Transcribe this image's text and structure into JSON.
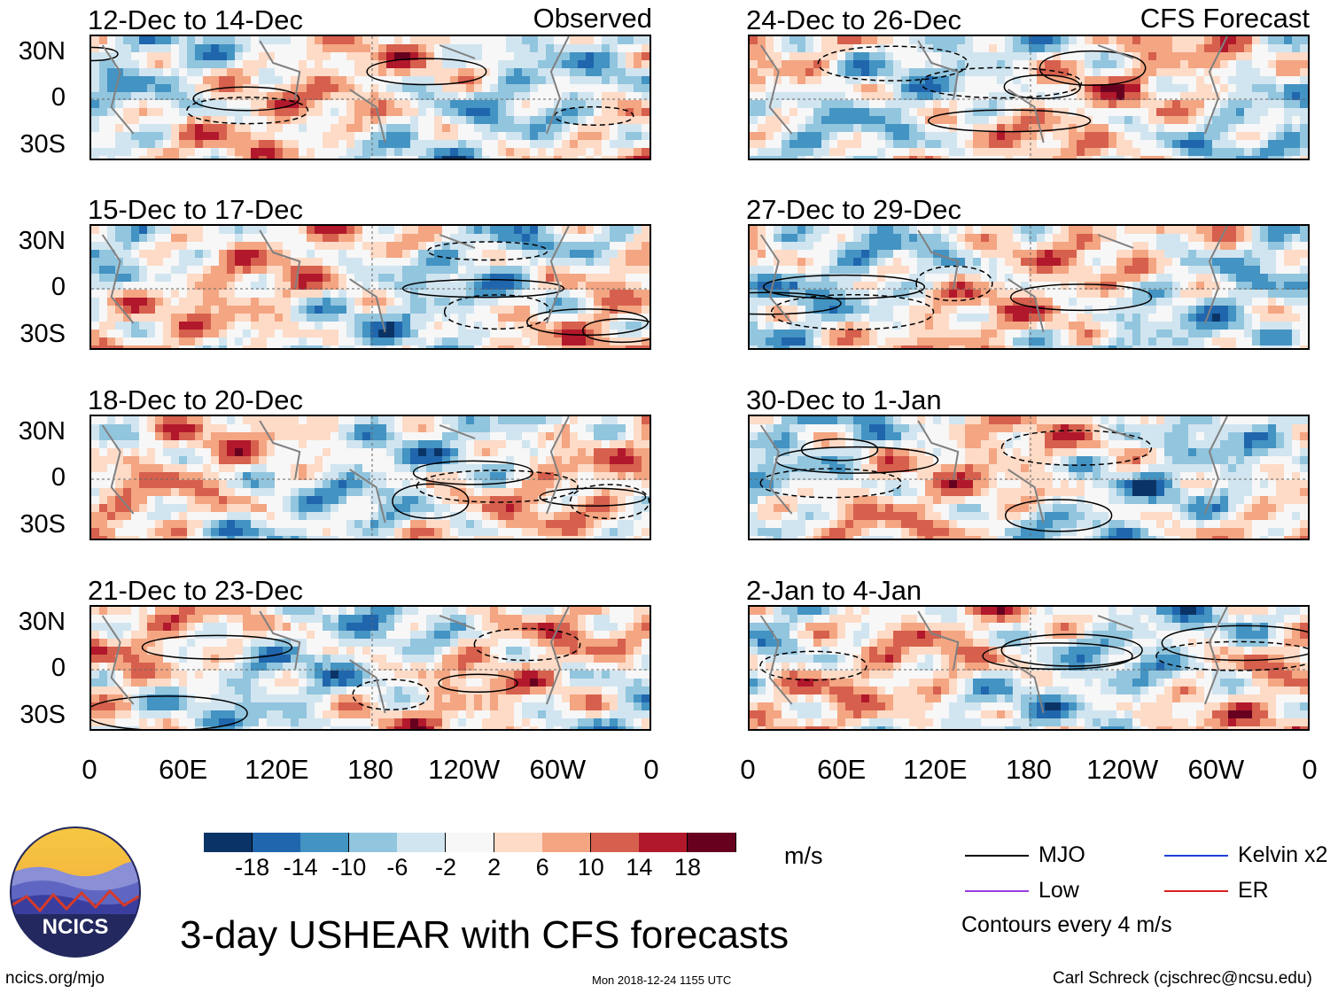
{
  "title": "3-day USHEAR with CFS forecasts",
  "site": "ncics.org/mjo",
  "timestamp": "Mon 2018-12-24 1155 UTC",
  "author": "Carl Schreck (cjschrec@ncsu.edu)",
  "logo_text": "NCICS",
  "units": "m/s",
  "contour_note": "Contours every 4 m/s",
  "left_column_tag": "Observed",
  "right_column_tag": "CFS Forecast",
  "y_ticks": [
    "30N",
    "0",
    "30S"
  ],
  "x_ticks": [
    "0",
    "60E",
    "120E",
    "180",
    "120W",
    "60W",
    "0"
  ],
  "legend": [
    {
      "label": "MJO",
      "color": "#000000"
    },
    {
      "label": "Kelvin x2",
      "color": "#1f3fd9"
    },
    {
      "label": "Low",
      "color": "#9a3de0"
    },
    {
      "label": "ER",
      "color": "#d9201f"
    }
  ],
  "colorbar": {
    "ticks": [
      "-18",
      "-14",
      "-10",
      "-6",
      "-2",
      "2",
      "6",
      "10",
      "14",
      "18"
    ],
    "colors": [
      "#0b3466",
      "#2066ad",
      "#4393c3",
      "#92c5de",
      "#d1e5f0",
      "#f7f7f7",
      "#fddbc7",
      "#f4a582",
      "#d6604d",
      "#b2182b",
      "#67001f"
    ]
  },
  "panels": [
    {
      "label": "12-Dec to 14-Dec",
      "column": "observed"
    },
    {
      "label": "15-Dec to 17-Dec",
      "column": "observed"
    },
    {
      "label": "18-Dec to 20-Dec",
      "column": "observed"
    },
    {
      "label": "21-Dec to 23-Dec",
      "column": "observed"
    },
    {
      "label": "24-Dec to 26-Dec",
      "column": "forecast"
    },
    {
      "label": "27-Dec to 29-Dec",
      "column": "forecast"
    },
    {
      "label": "30-Dec to 1-Jan",
      "column": "forecast"
    },
    {
      "label": "2-Jan to 4-Jan",
      "column": "forecast"
    }
  ],
  "chart_data": {
    "type": "heatmap",
    "title": "3-day USHEAR with CFS forecasts",
    "variable": "USHEAR",
    "units": "m/s",
    "xlabel": "",
    "ylabel": "",
    "xlim": [
      0,
      360
    ],
    "ylim": [
      -40,
      40
    ],
    "x_tick_labels": [
      "0",
      "60E",
      "120E",
      "180",
      "120W",
      "60W",
      "0"
    ],
    "y_tick_labels": [
      "30N",
      "0",
      "30S"
    ],
    "colorbar_levels": [
      -18,
      -14,
      -10,
      -6,
      -2,
      2,
      6,
      10,
      14,
      18
    ],
    "contour_interval": 4,
    "series": [
      {
        "name": "MJO",
        "color": "#000000"
      },
      {
        "name": "Kelvin x2",
        "color": "#1f3fd9"
      },
      {
        "name": "Low",
        "color": "#9a3de0"
      },
      {
        "name": "ER",
        "color": "#d9201f"
      }
    ]
  }
}
